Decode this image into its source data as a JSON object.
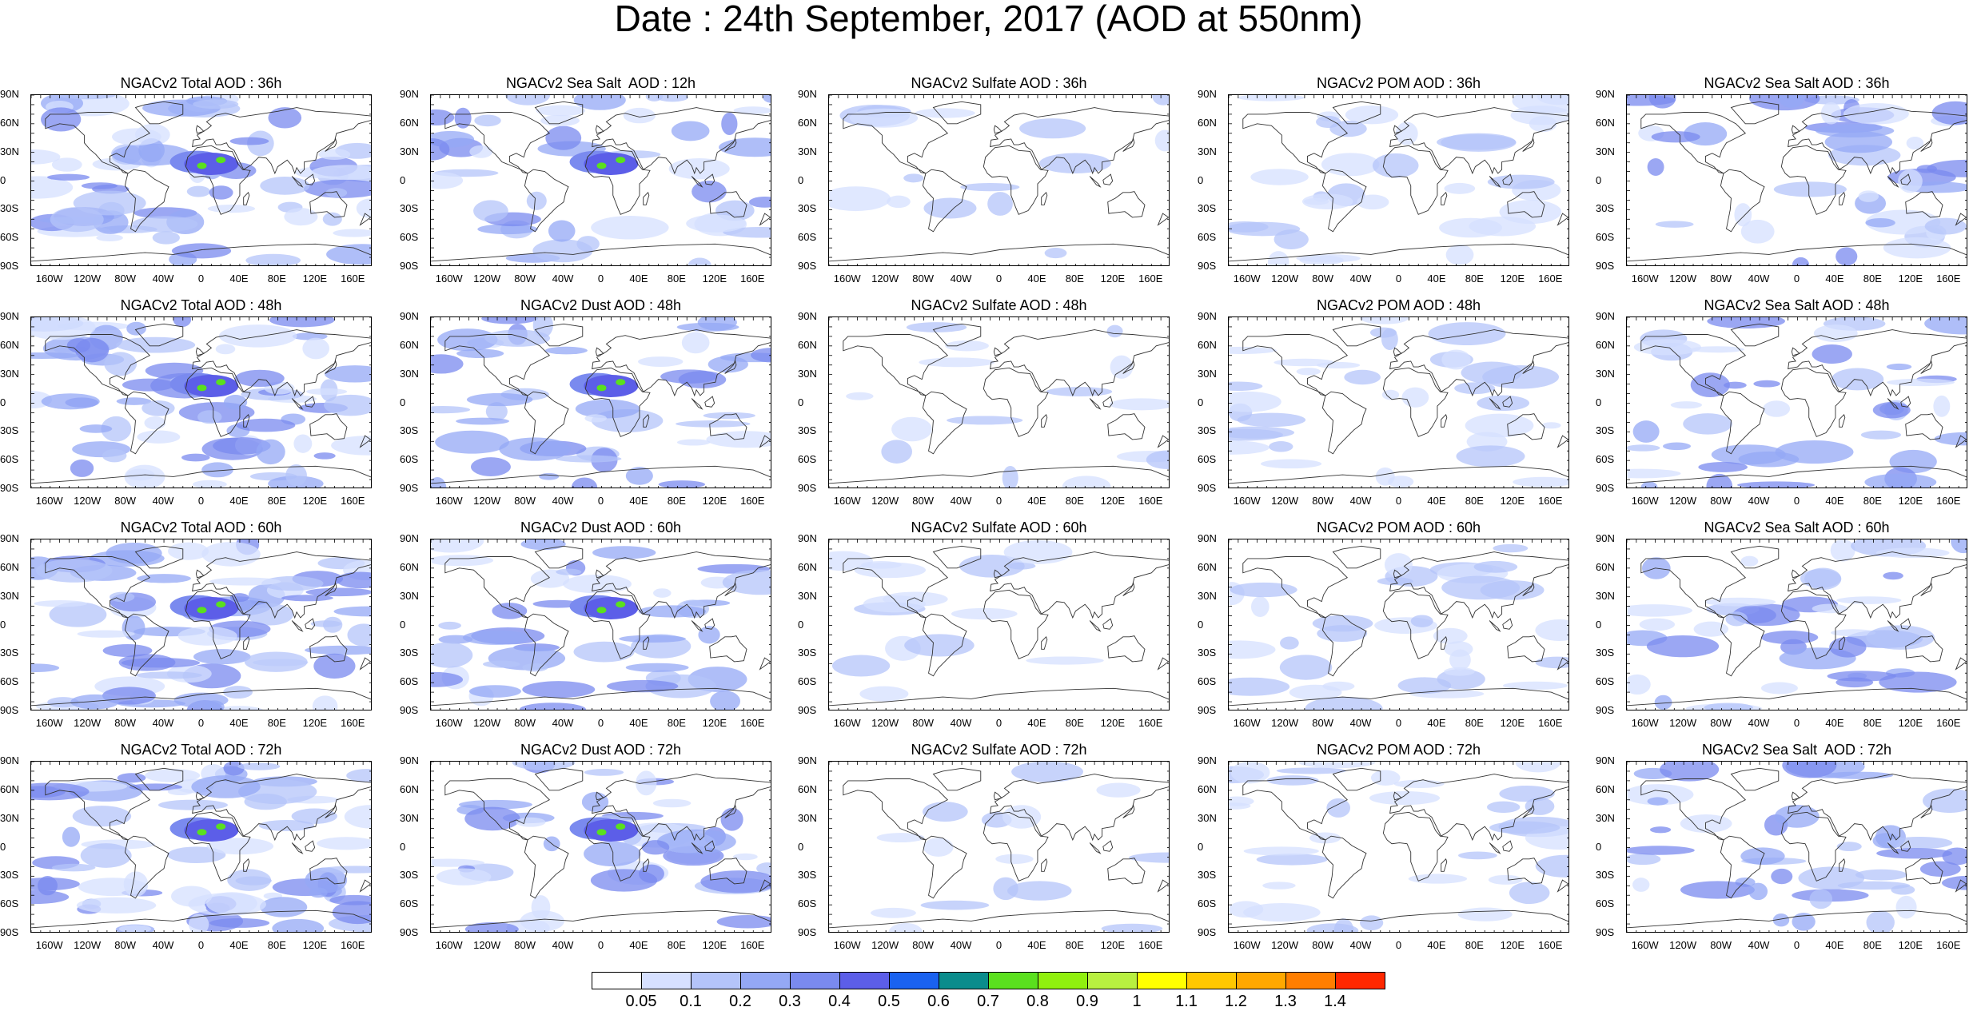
{
  "title": "Date : 24th September, 2017 (AOD at 550nm)",
  "panels": [
    [
      "NGACv2 Total AOD : 36h",
      "NGACv2 Sea Salt  AOD : 12h",
      "NGACv2 Sulfate AOD : 36h",
      "NGACv2 POM AOD : 36h",
      "NGACv2 Sea Salt AOD : 36h"
    ],
    [
      "NGACv2 Total AOD : 48h",
      "NGACv2 Dust AOD : 48h",
      "NGACv2 Sulfate AOD : 48h",
      "NGACv2 POM AOD : 48h",
      "NGACv2 Sea Salt AOD : 48h"
    ],
    [
      "NGACv2 Total AOD : 60h",
      "NGACv2 Dust AOD : 60h",
      "NGACv2 Sulfate AOD : 60h",
      "NGACv2 POM AOD : 60h",
      "NGACv2 Sea Salt AOD : 60h"
    ],
    [
      "NGACv2 Total AOD : 72h",
      "NGACv2 Dust AOD : 72h",
      "NGACv2 Sulfate AOD : 72h",
      "NGACv2 POM AOD : 72h",
      "NGACv2 Sea Salt  AOD : 72h"
    ]
  ],
  "lat_labels": [
    "90N",
    "60N",
    "30N",
    "0",
    "30S",
    "60S",
    "90S"
  ],
  "lon_labels": [
    "160W",
    "120W",
    "80W",
    "40W",
    "0",
    "40E",
    "80E",
    "120E",
    "160E"
  ],
  "colorbar": {
    "colors": [
      "#ffffff",
      "#d6e0ff",
      "#b4c4fa",
      "#94a8f5",
      "#7a8aef",
      "#5c5ee8",
      "#1a62f0",
      "#0a8c8c",
      "#5ae01e",
      "#90f00e",
      "#b8f040",
      "#ffff00",
      "#ffc800",
      "#ffa800",
      "#ff7e00",
      "#ff2800"
    ],
    "labels": [
      "0.05",
      "0.1",
      "0.2",
      "0.3",
      "0.4",
      "0.5",
      "0.6",
      "0.7",
      "0.8",
      "0.9",
      "1",
      "1.1",
      "1.2",
      "1.3",
      "1.4"
    ]
  },
  "panel_colors": {
    "background": "#ffffff",
    "coastline": "#333333"
  }
}
